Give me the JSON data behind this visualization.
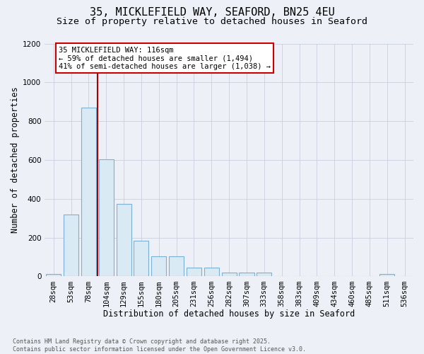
{
  "title_line1": "35, MICKLEFIELD WAY, SEAFORD, BN25 4EU",
  "title_line2": "Size of property relative to detached houses in Seaford",
  "xlabel": "Distribution of detached houses by size in Seaford",
  "ylabel": "Number of detached properties",
  "categories": [
    "28sqm",
    "53sqm",
    "78sqm",
    "104sqm",
    "129sqm",
    "155sqm",
    "180sqm",
    "205sqm",
    "231sqm",
    "256sqm",
    "282sqm",
    "307sqm",
    "333sqm",
    "358sqm",
    "383sqm",
    "409sqm",
    "434sqm",
    "460sqm",
    "485sqm",
    "511sqm",
    "536sqm"
  ],
  "values": [
    13,
    320,
    870,
    605,
    375,
    185,
    105,
    105,
    47,
    47,
    20,
    20,
    20,
    0,
    0,
    0,
    0,
    0,
    0,
    13,
    0
  ],
  "bar_color": "#daeaf5",
  "bar_edge_color": "#7ab0d4",
  "vline_color": "#aa0000",
  "annotation_text": "35 MICKLEFIELD WAY: 116sqm\n← 59% of detached houses are smaller (1,494)\n41% of semi-detached houses are larger (1,038) →",
  "annotation_box_edgecolor": "#cc0000",
  "ylim": [
    0,
    1200
  ],
  "yticks": [
    0,
    200,
    400,
    600,
    800,
    1000,
    1200
  ],
  "grid_color": "#c8d0dc",
  "background_color": "#edf1f7",
  "footnote": "Contains HM Land Registry data © Crown copyright and database right 2025.\nContains public sector information licensed under the Open Government Licence v3.0.",
  "title_fontsize": 11,
  "subtitle_fontsize": 9.5,
  "label_fontsize": 8.5,
  "tick_fontsize": 7.5,
  "annotation_fontsize": 7.5,
  "footnote_fontsize": 6
}
